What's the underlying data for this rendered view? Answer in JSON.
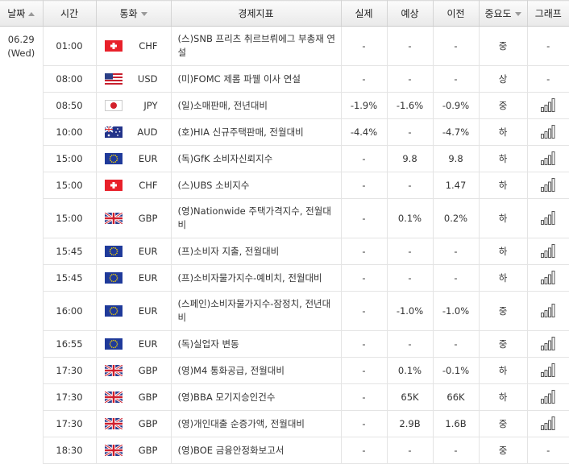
{
  "headers": {
    "date": "날짜",
    "time": "시간",
    "currency": "통화",
    "indicator": "경제지표",
    "actual": "실제",
    "forecast": "예상",
    "previous": "이전",
    "importance": "중요도",
    "graph": "그래프"
  },
  "date": {
    "day": "06.29",
    "weekday": "(Wed)"
  },
  "rows": [
    {
      "time": "01:00",
      "flag": "switzerland-flag",
      "currency": "CHF",
      "indicator": "(스)SNB 프리츠 취르브뤼에그 부총재 연설",
      "actual": "-",
      "forecast": "-",
      "previous": "-",
      "importance": "중",
      "graph": "-"
    },
    {
      "time": "08:00",
      "flag": "usa-flag",
      "currency": "USD",
      "indicator": "(미)FOMC 제롬 파웰 이사 연설",
      "actual": "-",
      "forecast": "-",
      "previous": "-",
      "importance": "상",
      "graph": "-"
    },
    {
      "time": "08:50",
      "flag": "japan-flag",
      "currency": "JPY",
      "indicator": "(일)소매판매, 전년대비",
      "actual": "-1.9%",
      "forecast": "-1.6%",
      "previous": "-0.9%",
      "importance": "중",
      "graph": "icon"
    },
    {
      "time": "10:00",
      "flag": "australia-flag",
      "currency": "AUD",
      "indicator": "(호)HIA 신규주택판매, 전월대비",
      "actual": "-4.4%",
      "forecast": "-",
      "previous": "-4.7%",
      "importance": "하",
      "graph": "icon"
    },
    {
      "time": "15:00",
      "flag": "eu-flag",
      "currency": "EUR",
      "indicator": "(독)GfK 소비자신뢰지수",
      "actual": "-",
      "forecast": "9.8",
      "previous": "9.8",
      "importance": "하",
      "graph": "icon"
    },
    {
      "time": "15:00",
      "flag": "switzerland-flag",
      "currency": "CHF",
      "indicator": "(스)UBS 소비지수",
      "actual": "-",
      "forecast": "-",
      "previous": "1.47",
      "importance": "하",
      "graph": "icon"
    },
    {
      "time": "15:00",
      "flag": "uk-flag",
      "currency": "GBP",
      "indicator": "(영)Nationwide 주택가격지수, 전월대비",
      "actual": "-",
      "forecast": "0.1%",
      "previous": "0.2%",
      "importance": "하",
      "graph": "icon"
    },
    {
      "time": "15:45",
      "flag": "eu-flag",
      "currency": "EUR",
      "indicator": "(프)소비자 지출, 전월대비",
      "actual": "-",
      "forecast": "-",
      "previous": "-",
      "importance": "하",
      "graph": "icon"
    },
    {
      "time": "15:45",
      "flag": "eu-flag",
      "currency": "EUR",
      "indicator": "(프)소비자물가지수-예비치, 전월대비",
      "actual": "-",
      "forecast": "-",
      "previous": "-",
      "importance": "하",
      "graph": "icon"
    },
    {
      "time": "16:00",
      "flag": "eu-flag",
      "currency": "EUR",
      "indicator": "(스페인)소비자물가지수-잠정치, 전년대비",
      "actual": "-",
      "forecast": "-1.0%",
      "previous": "-1.0%",
      "importance": "중",
      "graph": "icon"
    },
    {
      "time": "16:55",
      "flag": "eu-flag",
      "currency": "EUR",
      "indicator": "(독)실업자 변동",
      "actual": "-",
      "forecast": "-",
      "previous": "-",
      "importance": "중",
      "graph": "icon"
    },
    {
      "time": "17:30",
      "flag": "uk-flag",
      "currency": "GBP",
      "indicator": "(영)M4 통화공급, 전월대비",
      "actual": "-",
      "forecast": "0.1%",
      "previous": "-0.1%",
      "importance": "하",
      "graph": "icon"
    },
    {
      "time": "17:30",
      "flag": "uk-flag",
      "currency": "GBP",
      "indicator": "(영)BBA 모기지승인건수",
      "actual": "-",
      "forecast": "65K",
      "previous": "66K",
      "importance": "하",
      "graph": "icon"
    },
    {
      "time": "17:30",
      "flag": "uk-flag",
      "currency": "GBP",
      "indicator": "(영)개인대출 순증가액, 전월대비",
      "actual": "-",
      "forecast": "2.9B",
      "previous": "1.6B",
      "importance": "중",
      "graph": "icon"
    },
    {
      "time": "18:30",
      "flag": "uk-flag",
      "currency": "GBP",
      "indicator": "(영)BOE 금융안정화보고서",
      "actual": "-",
      "forecast": "-",
      "previous": "-",
      "importance": "중",
      "graph": "-"
    }
  ]
}
